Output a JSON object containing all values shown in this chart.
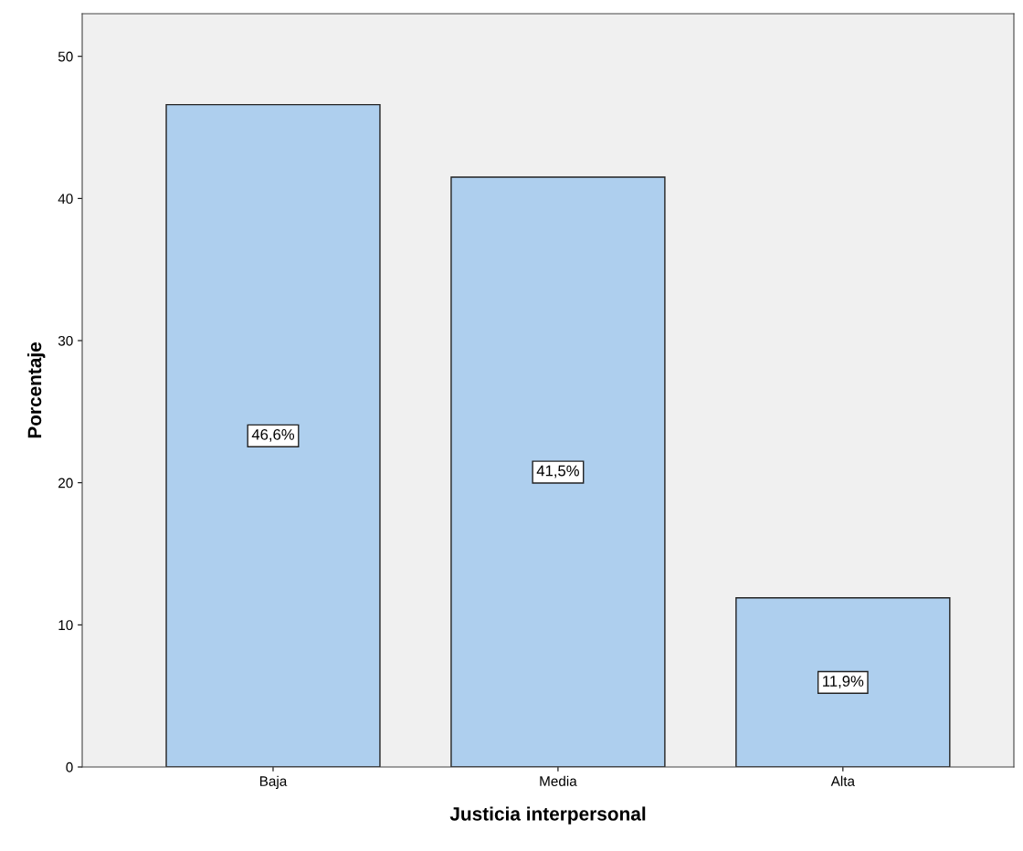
{
  "chart_data": {
    "type": "bar",
    "xlabel": "Justicia interpersonal",
    "ylabel": "Porcentaje",
    "categories": [
      "Baja",
      "Media",
      "Alta"
    ],
    "values": [
      46.6,
      41.5,
      11.9
    ],
    "value_labels": [
      "46,6%",
      "41,5%",
      "11,9%"
    ],
    "color": "#aecfee",
    "ylim": [
      0,
      53
    ],
    "yticks": [
      0,
      10,
      20,
      30,
      40,
      50
    ],
    "grid": false
  }
}
